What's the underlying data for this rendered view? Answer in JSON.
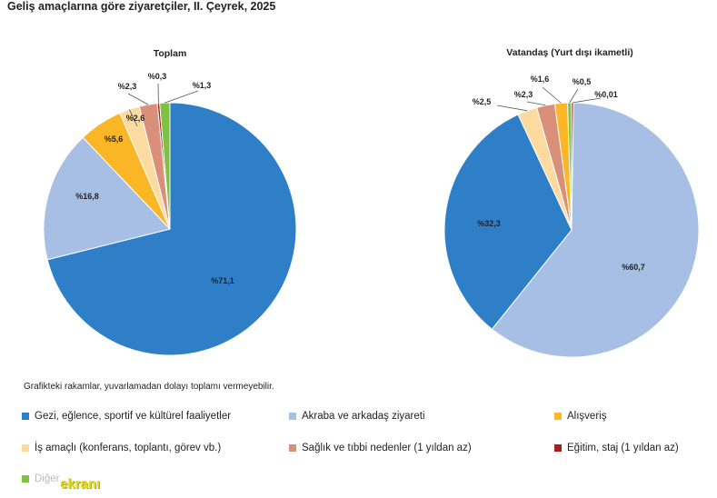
{
  "title": "Geliş amaçlarına göre ziyaretçiler, II. Çeyrek, 2025",
  "footnote": "Grafikteki rakamlar, yuvarlamadan dolayı toplamı vermeyebilir.",
  "watermark": {
    "text": "ekranı",
    "hidden_text": "Diğer"
  },
  "legend": [
    {
      "label": "Gezi, eğlence, sportif ve kültürel faaliyetler",
      "color": "#2f7fc8"
    },
    {
      "label": "Akraba ve arkadaş ziyareti",
      "color": "#a7bfe4"
    },
    {
      "label": "Alışveriş",
      "color": "#fab624"
    },
    {
      "label": "İş amaçlı (konferans, toplantı, görev vb.)",
      "color": "#fddba0"
    },
    {
      "label": "Sağlık ve tıbbi nedenler (1 yıldan az)",
      "color": "#d98f7a"
    },
    {
      "label": "Eğitim, staj (1 yıldan az)",
      "color": "#a8201a"
    },
    {
      "label": "Diğer",
      "color": "#7dc242"
    }
  ],
  "chart_data": [
    {
      "type": "pie",
      "title": "Toplam",
      "categories": [
        "Gezi, eğlence, sportif ve kültürel faaliyetler",
        "Akraba ve arkadaş ziyareti",
        "Alışveriş",
        "İş amaçlı (konferans, toplantı, görev vb.)",
        "Sağlık ve tıbbi nedenler (1 yıldan az)",
        "Eğitim, staj (1 yıldan az)",
        "Diğer"
      ],
      "values": [
        71.1,
        16.8,
        5.6,
        2.6,
        2.3,
        0.3,
        1.3
      ],
      "labels": [
        "%71,1",
        "%16,8",
        "%5,6",
        "%2,6",
        "%2,3",
        "%0,3",
        "%1,3"
      ],
      "colors": [
        "#2f7fc8",
        "#a7bfe4",
        "#fab624",
        "#fddba0",
        "#d98f7a",
        "#a8201a",
        "#7dc242"
      ]
    },
    {
      "type": "pie",
      "title": "Vatandaş (Yurt dışı ikametli)",
      "categories": [
        "Akraba ve arkadaş ziyareti",
        "Gezi, eğlence, sportif ve kültürel faaliyetler",
        "İş amaçlı (konferans, toplantı, görev vb.)",
        "Sağlık ve tıbbi nedenler (1 yıldan az)",
        "Alışveriş",
        "Diğer",
        "Eğitim, staj (1 yıldan az)"
      ],
      "values": [
        60.7,
        32.3,
        2.5,
        2.3,
        1.6,
        0.5,
        0.01
      ],
      "labels": [
        "%60,7",
        "%32,3",
        "%2,5",
        "%2,3",
        "%1,6",
        "%0,5",
        "%0,01"
      ],
      "colors": [
        "#a7bfe4",
        "#2f7fc8",
        "#fddba0",
        "#d98f7a",
        "#fab624",
        "#7dc242",
        "#a8201a"
      ]
    }
  ]
}
